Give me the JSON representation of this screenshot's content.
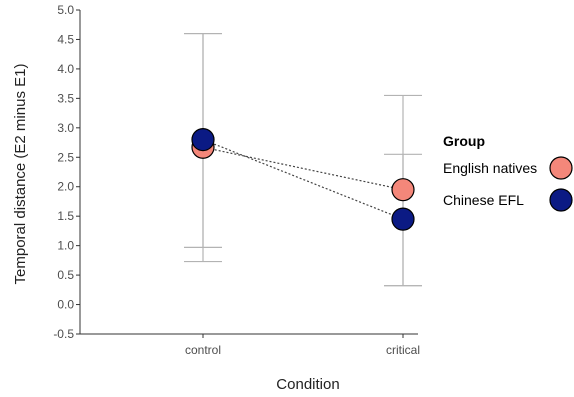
{
  "chart_data": {
    "type": "scatter",
    "xlabel": "Condition",
    "ylabel": "Temporal distance (E2 minus E1)",
    "categories": [
      "control",
      "critical"
    ],
    "ylim": [
      -0.5,
      5.0
    ],
    "yticks": [
      "-0.5",
      "0.0",
      "0.5",
      "1.0",
      "1.5",
      "2.0",
      "2.5",
      "3.0",
      "3.5",
      "4.0",
      "4.5",
      "5.0"
    ],
    "grid": false,
    "legend": {
      "title": "Group",
      "position": "right"
    },
    "series": [
      {
        "name": "English natives",
        "color": "#f4877a",
        "values": [
          2.67,
          1.95
        ],
        "error": [
          [
            0.73,
            4.6
          ],
          [
            0.32,
            3.55
          ]
        ]
      },
      {
        "name": "Chinese EFL",
        "color": "#0b1a84",
        "values": [
          2.8,
          1.45
        ],
        "error": [
          [
            0.97,
            4.6
          ],
          [
            0.32,
            2.55
          ]
        ]
      }
    ]
  }
}
